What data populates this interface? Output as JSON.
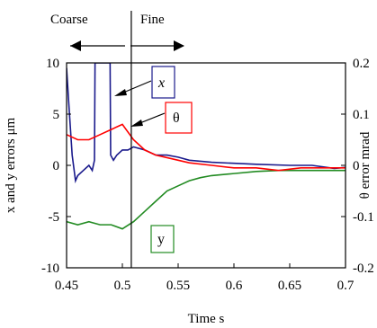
{
  "chart_data": {
    "type": "line",
    "title": "",
    "xlabel": "Time s",
    "ylabel_left": "x and y errors μm",
    "ylabel_right": "θ error mrad",
    "xlim": [
      0.45,
      0.7
    ],
    "ylim_left": [
      -10,
      10
    ],
    "ylim_right": [
      -0.2,
      0.2
    ],
    "x_ticks": [
      "0.45",
      "0.5",
      "0.55",
      "0.6",
      "0.65",
      "0.7"
    ],
    "y_left_ticks": [
      "10",
      "5",
      "0",
      "-5",
      "-10"
    ],
    "y_right_ticks": [
      "0.2",
      "0.1",
      "0",
      "-0.1",
      "-0.2"
    ],
    "grid": false,
    "phase_labels": {
      "coarse": "Coarse",
      "fine": "Fine",
      "boundary_x": 0.508
    },
    "series": [
      {
        "name": "x",
        "axis": "left",
        "color": "#1a1a8c",
        "x": [
          0.45,
          0.452,
          0.455,
          0.458,
          0.46,
          0.465,
          0.47,
          0.473,
          0.475,
          0.4755,
          0.48,
          0.485,
          0.489,
          0.4895,
          0.492,
          0.495,
          0.5,
          0.505,
          0.51,
          0.52,
          0.53,
          0.54,
          0.55,
          0.56,
          0.58,
          0.6,
          0.62,
          0.65,
          0.67,
          0.69,
          0.7
        ],
        "values": [
          9.5,
          6,
          1,
          -1.5,
          -1,
          -0.5,
          0,
          -0.5,
          0.5,
          10,
          10,
          10,
          10,
          1,
          0.5,
          1,
          1.5,
          1.5,
          1.8,
          1.5,
          1,
          1,
          0.8,
          0.5,
          0.3,
          0.2,
          0.1,
          0,
          0,
          -0.3,
          -0.2
        ]
      },
      {
        "name": "θ",
        "axis": "right",
        "color": "#ff0000",
        "x": [
          0.45,
          0.46,
          0.47,
          0.48,
          0.49,
          0.5,
          0.51,
          0.52,
          0.53,
          0.54,
          0.55,
          0.56,
          0.58,
          0.6,
          0.62,
          0.64,
          0.66,
          0.68,
          0.7
        ],
        "values": [
          0.06,
          0.05,
          0.05,
          0.06,
          0.07,
          0.08,
          0.05,
          0.03,
          0.02,
          0.015,
          0.01,
          0.005,
          0.0,
          -0.005,
          -0.005,
          -0.01,
          -0.005,
          -0.005,
          -0.005
        ]
      },
      {
        "name": "y",
        "axis": "left",
        "color": "#228b22",
        "x": [
          0.45,
          0.46,
          0.47,
          0.48,
          0.49,
          0.5,
          0.51,
          0.52,
          0.53,
          0.54,
          0.55,
          0.56,
          0.57,
          0.58,
          0.6,
          0.62,
          0.64,
          0.66,
          0.68,
          0.7
        ],
        "values": [
          -5.5,
          -5.8,
          -5.5,
          -5.8,
          -5.8,
          -6.2,
          -5.5,
          -4.5,
          -3.5,
          -2.5,
          -2,
          -1.5,
          -1.2,
          -1,
          -0.8,
          -0.6,
          -0.5,
          -0.5,
          -0.5,
          -0.5
        ]
      }
    ],
    "annotations": [
      {
        "label": "x",
        "color": "#1a1a8c"
      },
      {
        "label": "θ",
        "color": "#ff0000"
      },
      {
        "label": "y",
        "color": "#228b22"
      }
    ]
  }
}
